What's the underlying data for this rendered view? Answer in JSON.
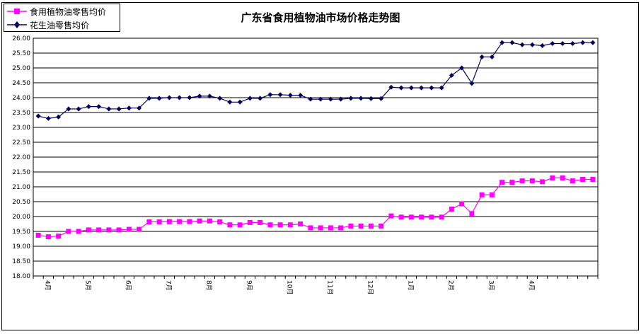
{
  "chart_data": {
    "type": "line",
    "title": "广东省食用植物油市场价格走势图",
    "xlabel": "",
    "ylabel": "",
    "ylim": [
      18.0,
      26.0
    ],
    "yticks": [
      "18.00",
      "18.50",
      "19.00",
      "19.50",
      "20.00",
      "20.50",
      "21.00",
      "21.50",
      "22.00",
      "22.50",
      "23.00",
      "23.50",
      "24.00",
      "24.50",
      "25.00",
      "25.50",
      "26.00"
    ],
    "month_labels": [
      "4月",
      "5月",
      "6月",
      "7月",
      "8月",
      "9月",
      "10月",
      "11月",
      "12月",
      "1月",
      "2月",
      "3月",
      "4月"
    ],
    "month_label_indices": [
      1,
      5,
      9,
      13,
      17,
      21,
      25,
      29,
      33,
      37,
      41,
      45,
      49
    ],
    "grid": true,
    "legend_position": "top-left",
    "series": [
      {
        "name": "食用植物油零售均价",
        "color": "#ff00ff",
        "marker": "square",
        "values": [
          19.37,
          19.32,
          19.34,
          19.5,
          19.5,
          19.55,
          19.55,
          19.55,
          19.55,
          19.57,
          19.57,
          19.82,
          19.82,
          19.83,
          19.83,
          19.83,
          19.85,
          19.85,
          19.82,
          19.72,
          19.72,
          19.8,
          19.8,
          19.72,
          19.72,
          19.72,
          19.75,
          19.62,
          19.62,
          19.62,
          19.62,
          19.68,
          19.68,
          19.68,
          19.68,
          20.02,
          19.98,
          19.98,
          19.98,
          19.98,
          19.98,
          20.25,
          20.43,
          20.1,
          20.73,
          20.73,
          21.15,
          21.15,
          21.2,
          21.2,
          21.17,
          21.3,
          21.3,
          21.2,
          21.25,
          21.25
        ]
      },
      {
        "name": "花生油零售均价",
        "color": "#00005a",
        "marker": "diamond",
        "values": [
          23.38,
          23.3,
          23.35,
          23.62,
          23.62,
          23.7,
          23.7,
          23.62,
          23.62,
          23.65,
          23.65,
          23.98,
          23.98,
          24.0,
          24.0,
          24.0,
          24.05,
          24.05,
          23.98,
          23.85,
          23.85,
          23.98,
          23.98,
          24.1,
          24.1,
          24.08,
          24.08,
          23.95,
          23.95,
          23.95,
          23.95,
          23.98,
          23.98,
          23.97,
          23.97,
          24.35,
          24.33,
          24.33,
          24.33,
          24.33,
          24.33,
          24.75,
          25.0,
          24.48,
          25.37,
          25.37,
          25.85,
          25.85,
          25.78,
          25.78,
          25.75,
          25.82,
          25.82,
          25.82,
          25.85,
          25.85
        ]
      }
    ]
  }
}
